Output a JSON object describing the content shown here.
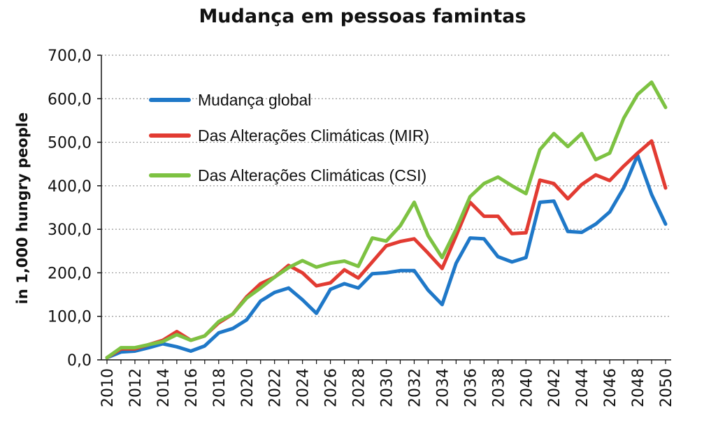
{
  "chart_data": {
    "type": "line",
    "title": "Mudança em pessoas famintas",
    "xlabel": "",
    "ylabel": "in 1,000 hungry people",
    "ylim": [
      0,
      700
    ],
    "yticks": [
      "0,0",
      "100,0",
      "200,0",
      "300,0",
      "400,0",
      "500,0",
      "600,0",
      "700,0"
    ],
    "ytick_values": [
      0,
      100,
      200,
      300,
      400,
      500,
      600,
      700
    ],
    "xtick_labels": [
      "2010",
      "2012",
      "2014",
      "2016",
      "2018",
      "2020",
      "2022",
      "2024",
      "2026",
      "2028",
      "2030",
      "2032",
      "2034",
      "2036",
      "2038",
      "2040",
      "2042",
      "2044",
      "2046",
      "2048",
      "2050"
    ],
    "grid": "horizontal dotted",
    "legend_position": "top-left",
    "x": [
      2010,
      2011,
      2012,
      2013,
      2014,
      2015,
      2016,
      2017,
      2018,
      2019,
      2020,
      2021,
      2022,
      2023,
      2024,
      2025,
      2026,
      2027,
      2028,
      2029,
      2030,
      2031,
      2032,
      2033,
      2034,
      2035,
      2036,
      2037,
      2038,
      2039,
      2040,
      2041,
      2042,
      2043,
      2044,
      2045,
      2046,
      2047,
      2048,
      2049,
      2050
    ],
    "series": [
      {
        "name": "Mudança global",
        "color": "#1f78c8",
        "values": [
          5,
          18,
          20,
          28,
          37,
          30,
          20,
          32,
          62,
          72,
          92,
          135,
          155,
          165,
          138,
          107,
          162,
          175,
          165,
          198,
          200,
          205,
          205,
          160,
          127,
          222,
          280,
          278,
          237,
          225,
          235,
          362,
          365,
          295,
          293,
          312,
          340,
          395,
          470,
          380,
          312
        ]
      },
      {
        "name": "Das Alterações Climáticas (MIR)",
        "color": "#e23b32",
        "values": [
          5,
          25,
          25,
          35,
          45,
          65,
          45,
          55,
          85,
          105,
          145,
          175,
          190,
          217,
          200,
          170,
          177,
          207,
          188,
          225,
          262,
          272,
          278,
          245,
          210,
          285,
          362,
          330,
          330,
          290,
          292,
          413,
          405,
          370,
          403,
          425,
          412,
          445,
          475,
          503,
          395
        ]
      },
      {
        "name": "Das Alterações Climáticas (CSI)",
        "color": "#7dc242",
        "values": [
          5,
          28,
          28,
          35,
          42,
          58,
          45,
          55,
          88,
          105,
          142,
          165,
          190,
          212,
          228,
          213,
          222,
          227,
          215,
          280,
          273,
          308,
          362,
          285,
          235,
          300,
          375,
          405,
          420,
          400,
          382,
          483,
          520,
          490,
          520,
          460,
          475,
          555,
          610,
          638,
          580
        ]
      }
    ]
  }
}
